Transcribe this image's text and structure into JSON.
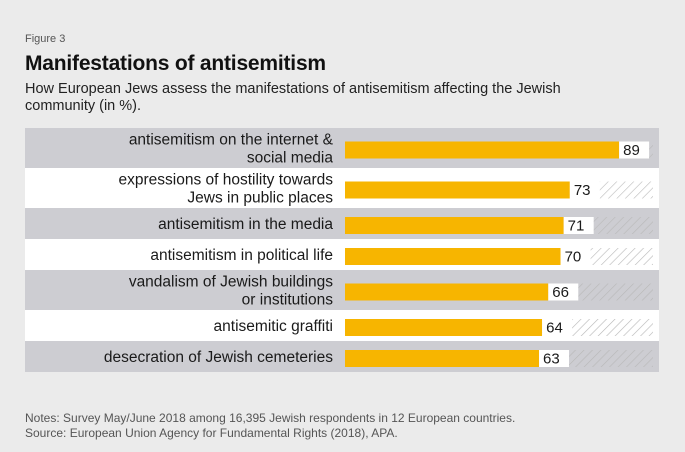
{
  "figure_label": "Figure 3",
  "title": "Manifestations of antisemitism",
  "subtitle": "How European Jews assess the manifestations of antisemitism affecting the Jewish community (in %).",
  "notes": [
    "Notes: Survey May/June 2018 among 16,395 Jewish respondents in 12 European countries.",
    "Source: European Union Agency for Fundamental Rights (2018), APA."
  ],
  "colors": {
    "bar": "#f7b500",
    "row_shaded": "#cdcdd2",
    "row_plain": "#ffffff",
    "hatch": "#b8b8b8"
  },
  "chart_data": {
    "type": "bar",
    "orientation": "horizontal",
    "categories": [
      [
        "antisemitism on the internet &",
        "social media"
      ],
      [
        "expressions of hostility towards",
        "Jews in public places"
      ],
      [
        "antisemitism in the media"
      ],
      [
        "antisemitism in political life"
      ],
      [
        "vandalism of Jewish buildings",
        "or institutions"
      ],
      [
        "antisemitic graffiti"
      ],
      [
        "desecration of Jewish cemeteries"
      ]
    ],
    "values": [
      89,
      73,
      71,
      70,
      66,
      64,
      63
    ],
    "xlim": [
      0,
      100
    ]
  }
}
